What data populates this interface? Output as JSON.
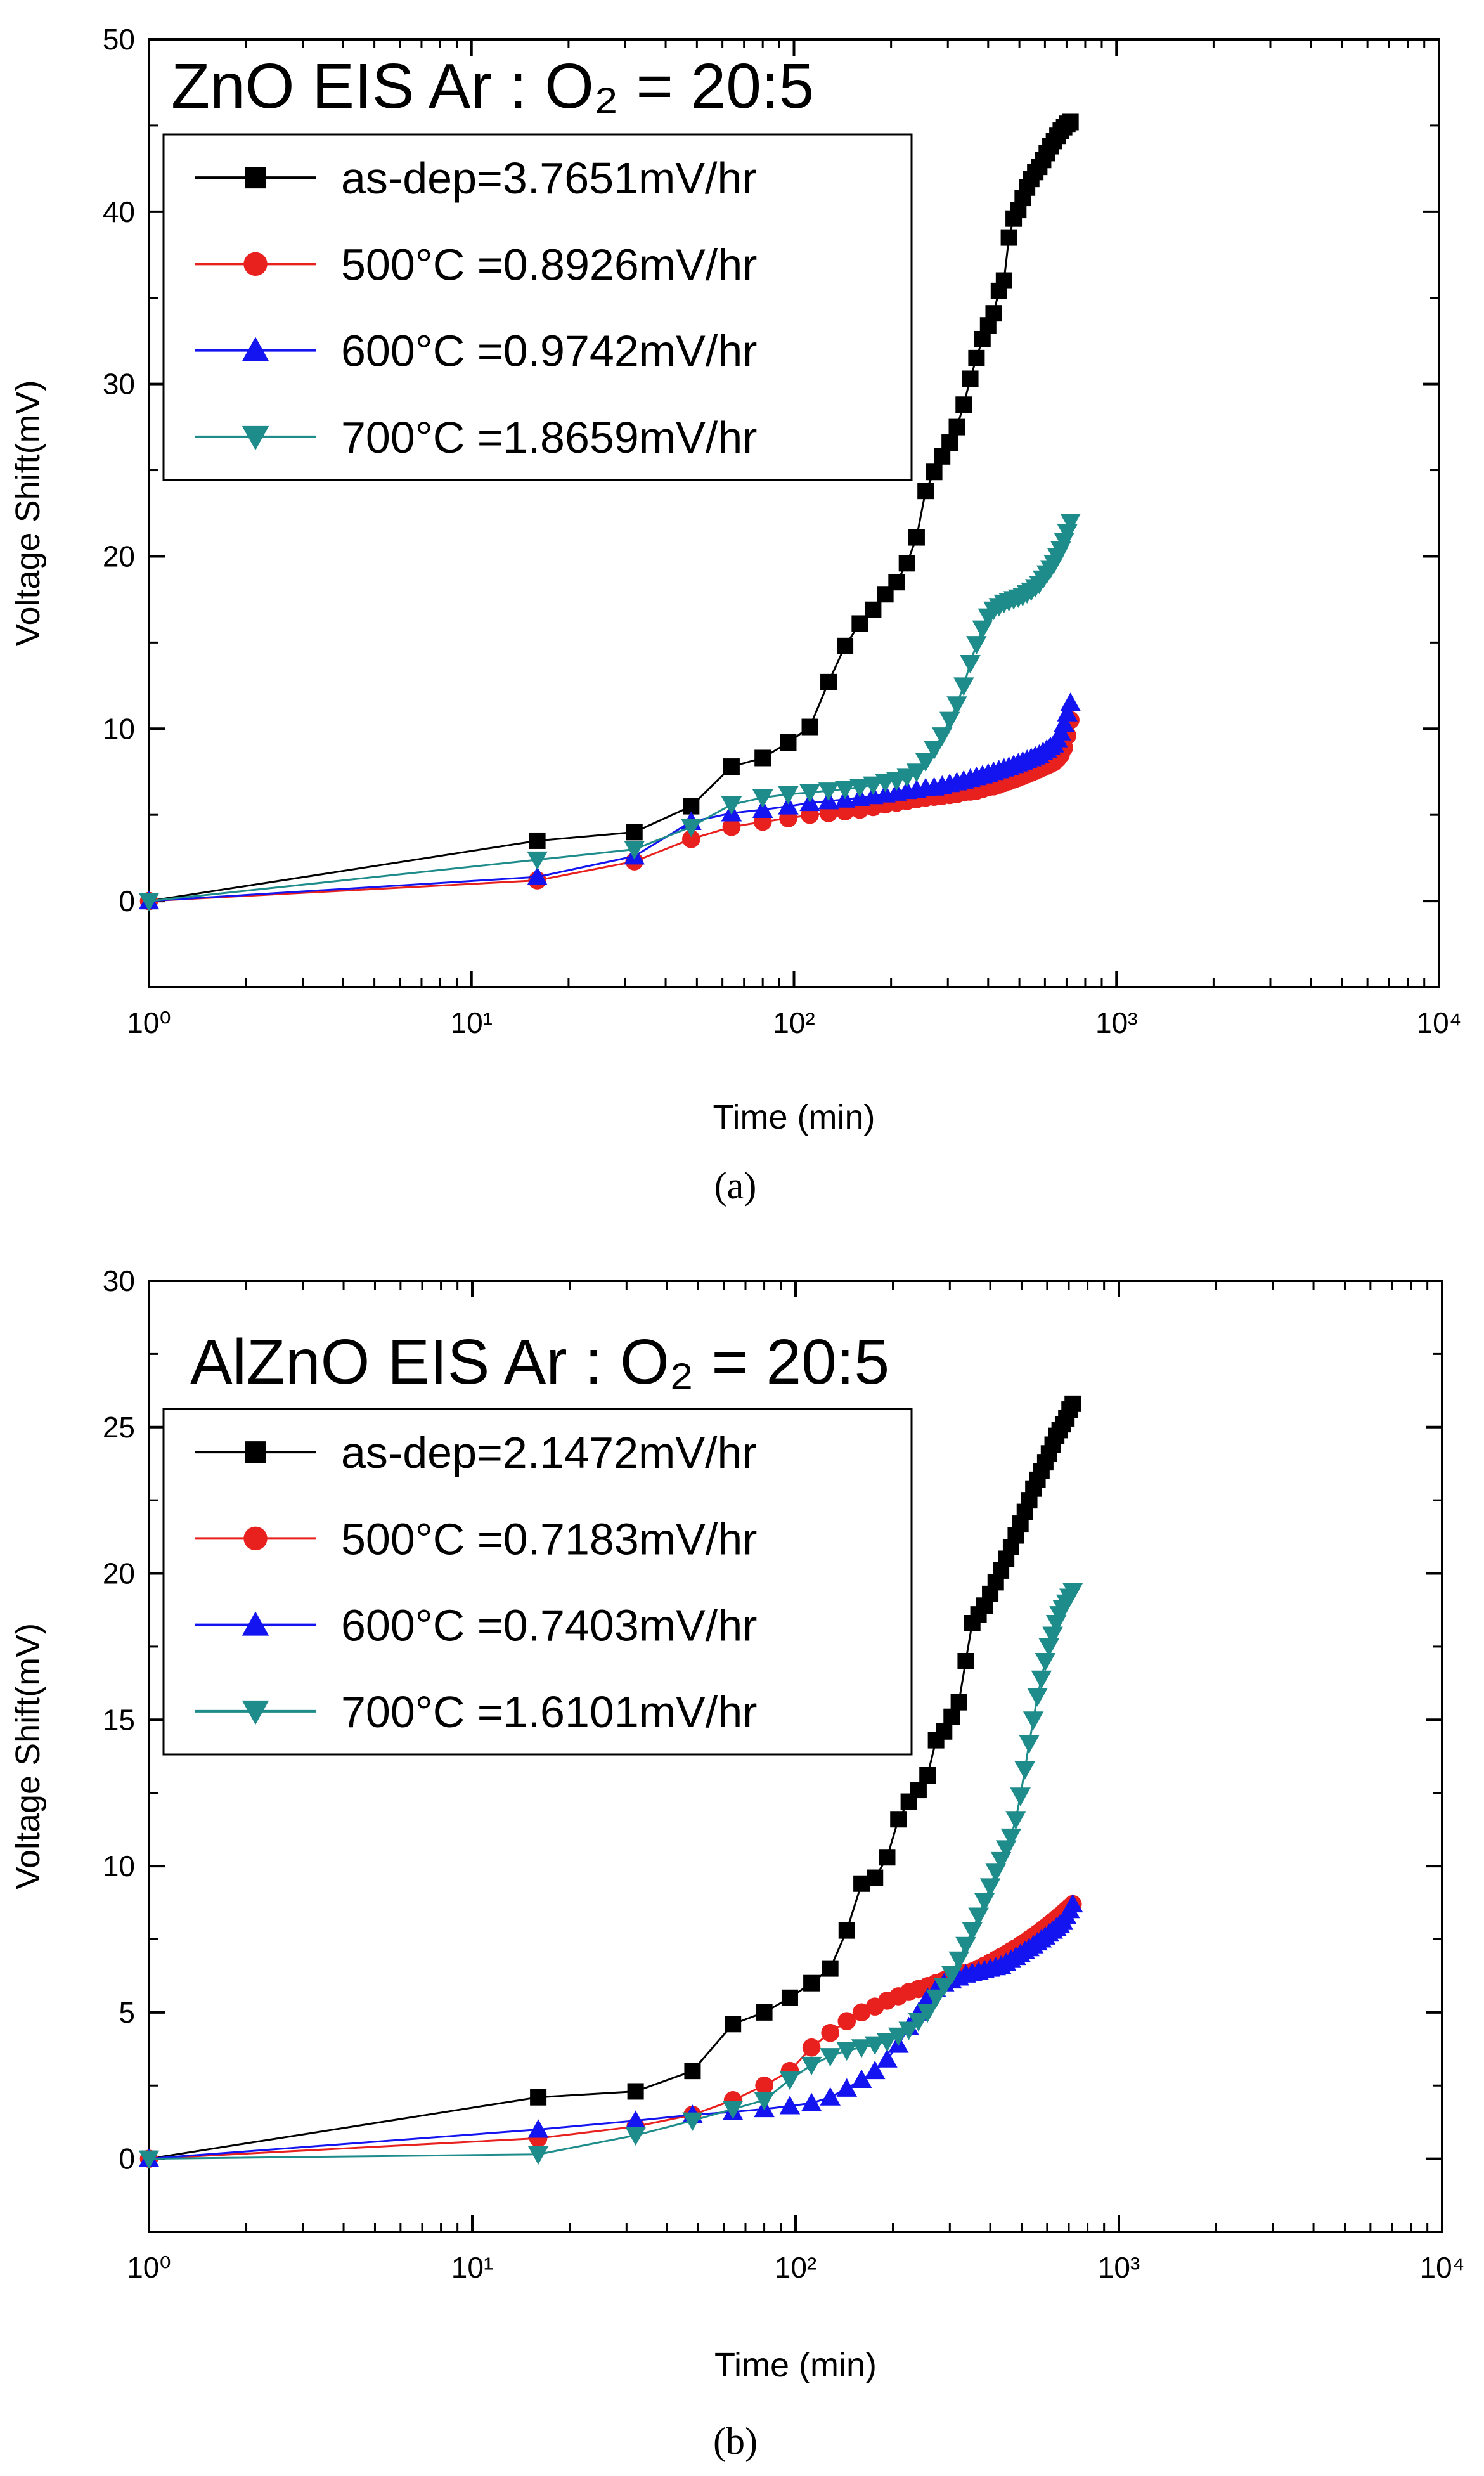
{
  "chart_data": [
    {
      "type": "line",
      "title": "ZnO EIS Ar : O₂ = 20:5",
      "panel_label": "(a)",
      "xlabel": "Time (min)",
      "ylabel": "Voltage Shift(mV)",
      "x_scale": "log",
      "xlim": [
        1,
        10000
      ],
      "ylim": [
        -5,
        50
      ],
      "x_ticks": [
        "10⁰",
        "10¹",
        "10²",
        "10³",
        "10⁴"
      ],
      "y_ticks": [
        "0",
        "10",
        "20",
        "30",
        "40",
        "50"
      ],
      "legend_position": "top-left",
      "series": [
        {
          "name": "as-dep=3.7651mV/hr",
          "color": "#000000",
          "marker": "square",
          "x": [
            1,
            16,
            32,
            48,
            64,
            80,
            96,
            112,
            128,
            144,
            160,
            176,
            192,
            208,
            224,
            240,
            256,
            272,
            288,
            304,
            320,
            336,
            352,
            368,
            384,
            400,
            416,
            432,
            448,
            464,
            480,
            496,
            512,
            528,
            544,
            560,
            576,
            592,
            608,
            624,
            640,
            656,
            672,
            688,
            704,
            720
          ],
          "y": [
            0,
            3.5,
            4.0,
            5.5,
            7.8,
            8.3,
            9.2,
            10.1,
            12.7,
            14.8,
            16.1,
            16.9,
            17.8,
            18.5,
            19.6,
            21.1,
            23.8,
            24.9,
            25.8,
            26.6,
            27.5,
            28.8,
            30.3,
            31.5,
            32.6,
            33.4,
            34.1,
            35.4,
            36.0,
            38.5,
            39.6,
            40.1,
            40.8,
            41.4,
            41.9,
            42.3,
            42.6,
            43.0,
            43.4,
            43.8,
            44.1,
            44.4,
            44.7,
            44.9,
            45.1,
            45.2
          ]
        },
        {
          "name": "500°C =0.8926mV/hr",
          "color": "#e8201e",
          "marker": "circle",
          "x": [
            1,
            16,
            32,
            48,
            64,
            80,
            96,
            112,
            128,
            144,
            160,
            176,
            192,
            208,
            224,
            240,
            256,
            272,
            288,
            304,
            320,
            336,
            352,
            368,
            384,
            400,
            416,
            432,
            448,
            464,
            480,
            496,
            512,
            528,
            544,
            560,
            576,
            592,
            608,
            624,
            640,
            656,
            672,
            688,
            704,
            720
          ],
          "y": [
            0,
            1.2,
            2.3,
            3.6,
            4.3,
            4.6,
            4.8,
            5.0,
            5.1,
            5.2,
            5.3,
            5.45,
            5.6,
            5.7,
            5.8,
            5.9,
            6.0,
            6.05,
            6.1,
            6.15,
            6.2,
            6.3,
            6.35,
            6.4,
            6.5,
            6.6,
            6.65,
            6.75,
            6.85,
            6.95,
            7.05,
            7.15,
            7.25,
            7.35,
            7.45,
            7.55,
            7.65,
            7.75,
            7.85,
            7.95,
            8.05,
            8.25,
            8.5,
            8.9,
            9.6,
            10.5
          ]
        },
        {
          "name": "600°C =0.9742mV/hr",
          "color": "#1414f0",
          "marker": "triangle-up",
          "x": [
            1,
            16,
            32,
            48,
            64,
            80,
            96,
            112,
            128,
            144,
            160,
            176,
            192,
            208,
            224,
            240,
            256,
            272,
            288,
            304,
            320,
            336,
            352,
            368,
            384,
            400,
            416,
            432,
            448,
            464,
            480,
            496,
            512,
            528,
            544,
            560,
            576,
            592,
            608,
            624,
            640,
            656,
            672,
            688,
            704,
            720
          ],
          "y": [
            0,
            1.4,
            2.6,
            4.6,
            5.1,
            5.3,
            5.5,
            5.7,
            5.8,
            5.9,
            6.0,
            6.1,
            6.2,
            6.3,
            6.4,
            6.45,
            6.55,
            6.6,
            6.7,
            6.8,
            6.9,
            7.0,
            7.1,
            7.2,
            7.3,
            7.4,
            7.5,
            7.6,
            7.7,
            7.8,
            7.9,
            8.0,
            8.1,
            8.2,
            8.3,
            8.4,
            8.5,
            8.65,
            8.8,
            8.95,
            9.1,
            9.4,
            9.8,
            10.3,
            10.9,
            11.5
          ]
        },
        {
          "name": "700°C =1.8659mV/hr",
          "color": "#1d8c8a",
          "marker": "triangle-down",
          "x": [
            1,
            16,
            32,
            48,
            64,
            80,
            96,
            112,
            128,
            144,
            160,
            176,
            192,
            208,
            224,
            240,
            256,
            272,
            288,
            304,
            320,
            336,
            352,
            368,
            384,
            400,
            416,
            432,
            448,
            464,
            480,
            496,
            512,
            528,
            544,
            560,
            576,
            592,
            608,
            624,
            640,
            656,
            672,
            688,
            704,
            720
          ],
          "y": [
            0,
            2.4,
            3.0,
            4.3,
            5.6,
            6.0,
            6.2,
            6.3,
            6.4,
            6.5,
            6.6,
            6.75,
            6.9,
            7.0,
            7.2,
            7.5,
            8.1,
            8.8,
            9.6,
            10.5,
            11.4,
            12.5,
            13.8,
            14.9,
            15.8,
            16.5,
            16.9,
            17.1,
            17.3,
            17.4,
            17.5,
            17.6,
            17.7,
            17.85,
            18.0,
            18.2,
            18.4,
            18.7,
            19.0,
            19.3,
            19.6,
            20.0,
            20.4,
            20.9,
            21.4,
            22.0
          ]
        }
      ]
    },
    {
      "type": "line",
      "title": "AlZnO EIS Ar : O₂ = 20:5",
      "panel_label": "(b)",
      "xlabel": "Time (min)",
      "ylabel": "Voltage Shift(mV)",
      "x_scale": "log",
      "xlim": [
        1,
        10000
      ],
      "ylim": [
        -2.5,
        30
      ],
      "x_ticks": [
        "10⁰",
        "10¹",
        "10²",
        "10³",
        "10⁴"
      ],
      "y_ticks": [
        "0",
        "5",
        "10",
        "15",
        "20",
        "25",
        "30"
      ],
      "legend_position": "top-left",
      "series": [
        {
          "name": "as-dep=2.1472mV/hr",
          "color": "#000000",
          "marker": "square",
          "x": [
            1,
            16,
            32,
            48,
            64,
            80,
            96,
            112,
            128,
            144,
            160,
            176,
            192,
            208,
            224,
            240,
            256,
            272,
            288,
            304,
            320,
            336,
            352,
            368,
            384,
            400,
            416,
            432,
            448,
            464,
            480,
            496,
            512,
            528,
            544,
            560,
            576,
            592,
            608,
            624,
            640,
            656,
            672,
            688,
            704,
            720
          ],
          "y": [
            0,
            2.1,
            2.3,
            3.0,
            4.6,
            5.0,
            5.5,
            6.0,
            6.5,
            7.8,
            9.4,
            9.6,
            10.3,
            11.6,
            12.2,
            12.6,
            13.1,
            14.3,
            14.6,
            15.1,
            15.6,
            17.0,
            18.3,
            18.6,
            18.9,
            19.3,
            19.7,
            20.1,
            20.5,
            20.9,
            21.3,
            21.7,
            22.1,
            22.5,
            22.9,
            23.2,
            23.5,
            23.8,
            24.1,
            24.4,
            24.7,
            24.9,
            25.1,
            25.3,
            25.6,
            25.8
          ]
        },
        {
          "name": "500°C =0.7183mV/hr",
          "color": "#e8201e",
          "marker": "circle",
          "x": [
            1,
            16,
            32,
            48,
            64,
            80,
            96,
            112,
            128,
            144,
            160,
            176,
            192,
            208,
            224,
            240,
            256,
            272,
            288,
            304,
            320,
            336,
            352,
            368,
            384,
            400,
            416,
            432,
            448,
            464,
            480,
            496,
            512,
            528,
            544,
            560,
            576,
            592,
            608,
            624,
            640,
            656,
            672,
            688,
            704,
            720
          ],
          "y": [
            0,
            0.7,
            1.1,
            1.5,
            2.0,
            2.5,
            3.0,
            3.8,
            4.3,
            4.7,
            5.0,
            5.2,
            5.4,
            5.55,
            5.7,
            5.8,
            5.9,
            6.0,
            6.1,
            6.2,
            6.3,
            6.35,
            6.4,
            6.5,
            6.6,
            6.7,
            6.8,
            6.9,
            7.0,
            7.1,
            7.2,
            7.3,
            7.4,
            7.5,
            7.6,
            7.7,
            7.8,
            7.9,
            8.0,
            8.1,
            8.2,
            8.3,
            8.4,
            8.5,
            8.6,
            8.7
          ]
        },
        {
          "name": "600°C =0.7403mV/hr",
          "color": "#1414f0",
          "marker": "triangle-up",
          "x": [
            1,
            16,
            32,
            48,
            64,
            80,
            96,
            112,
            128,
            144,
            160,
            176,
            192,
            208,
            224,
            240,
            256,
            272,
            288,
            304,
            320,
            336,
            352,
            368,
            384,
            400,
            416,
            432,
            448,
            464,
            480,
            496,
            512,
            528,
            544,
            560,
            576,
            592,
            608,
            624,
            640,
            656,
            672,
            688,
            704,
            720
          ],
          "y": [
            0,
            1.0,
            1.3,
            1.5,
            1.6,
            1.7,
            1.8,
            1.9,
            2.1,
            2.4,
            2.7,
            3.0,
            3.4,
            3.9,
            4.5,
            5.0,
            5.5,
            5.8,
            6.0,
            6.1,
            6.2,
            6.3,
            6.35,
            6.4,
            6.45,
            6.5,
            6.55,
            6.6,
            6.7,
            6.8,
            6.9,
            7.0,
            7.1,
            7.2,
            7.3,
            7.4,
            7.5,
            7.6,
            7.7,
            7.8,
            7.9,
            8.0,
            8.1,
            8.3,
            8.5,
            8.7
          ]
        },
        {
          "name": "700°C =1.6101mV/hr",
          "color": "#1d8c8a",
          "marker": "triangle-down",
          "x": [
            1,
            16,
            32,
            48,
            64,
            80,
            96,
            112,
            128,
            144,
            160,
            176,
            192,
            208,
            224,
            240,
            256,
            272,
            288,
            304,
            320,
            336,
            352,
            368,
            384,
            400,
            416,
            432,
            448,
            464,
            480,
            496,
            512,
            528,
            544,
            560,
            576,
            592,
            608,
            624,
            640,
            656,
            672,
            688,
            704,
            720
          ],
          "y": [
            0,
            0.15,
            0.8,
            1.3,
            1.7,
            2.0,
            2.7,
            3.2,
            3.5,
            3.7,
            3.8,
            3.9,
            4.0,
            4.2,
            4.4,
            4.7,
            5.0,
            5.5,
            5.9,
            6.3,
            6.8,
            7.3,
            7.8,
            8.3,
            8.8,
            9.3,
            9.8,
            10.2,
            10.6,
            11.0,
            11.6,
            12.4,
            13.3,
            14.2,
            15.0,
            15.8,
            16.4,
            17.0,
            17.5,
            17.9,
            18.3,
            18.6,
            18.8,
            19.0,
            19.2,
            19.4
          ]
        }
      ]
    }
  ]
}
